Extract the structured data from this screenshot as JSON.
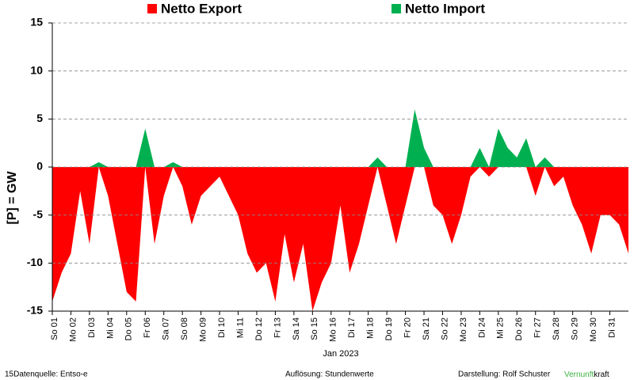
{
  "chart_data": {
    "type": "area",
    "legend": "top",
    "ylabel": "[P] = GW",
    "xlabel": "Jan 2023",
    "xlim": [
      0,
      31
    ],
    "ylim": [
      -15,
      15
    ],
    "yticks": [
      15,
      10,
      5,
      0,
      -5,
      -10,
      -15
    ],
    "grid": true,
    "xticks": [
      {
        "value": 0,
        "label": "So 01"
      },
      {
        "value": 1,
        "label": "Mo 02"
      },
      {
        "value": 2,
        "label": "Di 03"
      },
      {
        "value": 3,
        "label": "Mi 04"
      },
      {
        "value": 4,
        "label": "Do 05"
      },
      {
        "value": 5,
        "label": "Fr 06"
      },
      {
        "value": 6,
        "label": "Sa 07"
      },
      {
        "value": 7,
        "label": "So 08"
      },
      {
        "value": 8,
        "label": "Mo 09"
      },
      {
        "value": 9,
        "label": "Di 10"
      },
      {
        "value": 10,
        "label": "Mi 11"
      },
      {
        "value": 11,
        "label": "Do 12"
      },
      {
        "value": 12,
        "label": "Fr 13"
      },
      {
        "value": 13,
        "label": "Sa 14"
      },
      {
        "value": 14,
        "label": "So 15"
      },
      {
        "value": 15,
        "label": "Mo 16"
      },
      {
        "value": 16,
        "label": "Di 17"
      },
      {
        "value": 17,
        "label": "Mi 18"
      },
      {
        "value": 18,
        "label": "Do 19"
      },
      {
        "value": 19,
        "label": "Fr 20"
      },
      {
        "value": 20,
        "label": "Sa 21"
      },
      {
        "value": 21,
        "label": "So 22"
      },
      {
        "value": 22,
        "label": "Mo 23"
      },
      {
        "value": 23,
        "label": "Di 24"
      },
      {
        "value": 24,
        "label": "Mi 25"
      },
      {
        "value": 25,
        "label": "Do 26"
      },
      {
        "value": 26,
        "label": "Fr 27"
      },
      {
        "value": 27,
        "label": "Sa 28"
      },
      {
        "value": 28,
        "label": "So 29"
      },
      {
        "value": 29,
        "label": "Mo 30"
      },
      {
        "value": 30,
        "label": "Di 31"
      }
    ],
    "x": [
      0,
      0.5,
      1,
      1.5,
      2,
      2.5,
      3,
      3.5,
      4,
      4.5,
      5,
      5.5,
      6,
      6.5,
      7,
      7.5,
      8,
      8.5,
      9,
      9.5,
      10,
      10.5,
      11,
      11.5,
      12,
      12.5,
      13,
      13.5,
      14,
      14.5,
      15,
      15.5,
      16,
      16.5,
      17,
      17.5,
      18,
      18.5,
      19,
      19.5,
      20,
      20.5,
      21,
      21.5,
      22,
      22.5,
      23,
      23.5,
      24,
      24.5,
      25,
      25.5,
      26,
      26.5,
      27,
      27.5,
      28,
      28.5,
      29,
      29.5,
      30,
      30.5,
      31
    ],
    "series": [
      {
        "name": "Netto Export",
        "color": "#ff0000",
        "values": [
          -14,
          -11,
          -9,
          -2.5,
          -8,
          0,
          -3,
          -8,
          -13,
          -14,
          0,
          -8,
          -3,
          0,
          -2,
          -6,
          -3,
          -2,
          -1,
          -3,
          -5,
          -9,
          -11,
          -10,
          -14,
          -7,
          -12,
          -8,
          -15,
          -12,
          -10,
          -4,
          -11,
          -8,
          -4,
          0,
          -4,
          -8,
          -4,
          0,
          0,
          -4,
          -5,
          -8,
          -5,
          -1,
          0,
          -1,
          0,
          0,
          0,
          0,
          -3,
          0,
          -2,
          -1,
          -4,
          -6,
          -9,
          -5,
          -5,
          -6,
          -9
        ]
      },
      {
        "name": "Netto Import",
        "color": "#00b050",
        "values": [
          0,
          0,
          0,
          0,
          0,
          0.5,
          0,
          0,
          0,
          0,
          4,
          0,
          0,
          0.5,
          0,
          0,
          0,
          0,
          0,
          0,
          0,
          0,
          0,
          0,
          0,
          0,
          0,
          0,
          0,
          0,
          0,
          0,
          0,
          0,
          0,
          1,
          0,
          0,
          0,
          6,
          2,
          0,
          0,
          0,
          0,
          0,
          2,
          0,
          4,
          2,
          1,
          3,
          0,
          1,
          0,
          0,
          0,
          0,
          0,
          0,
          0,
          0,
          0
        ]
      }
    ]
  },
  "footer": {
    "source": "15Datenquelle: Entso-e",
    "resolution": "Auflösung: Stundenwerte",
    "author": "Darstellung:  Rolf Schuster",
    "brand_green": "Vernunft",
    "brand_black": "kraft"
  }
}
